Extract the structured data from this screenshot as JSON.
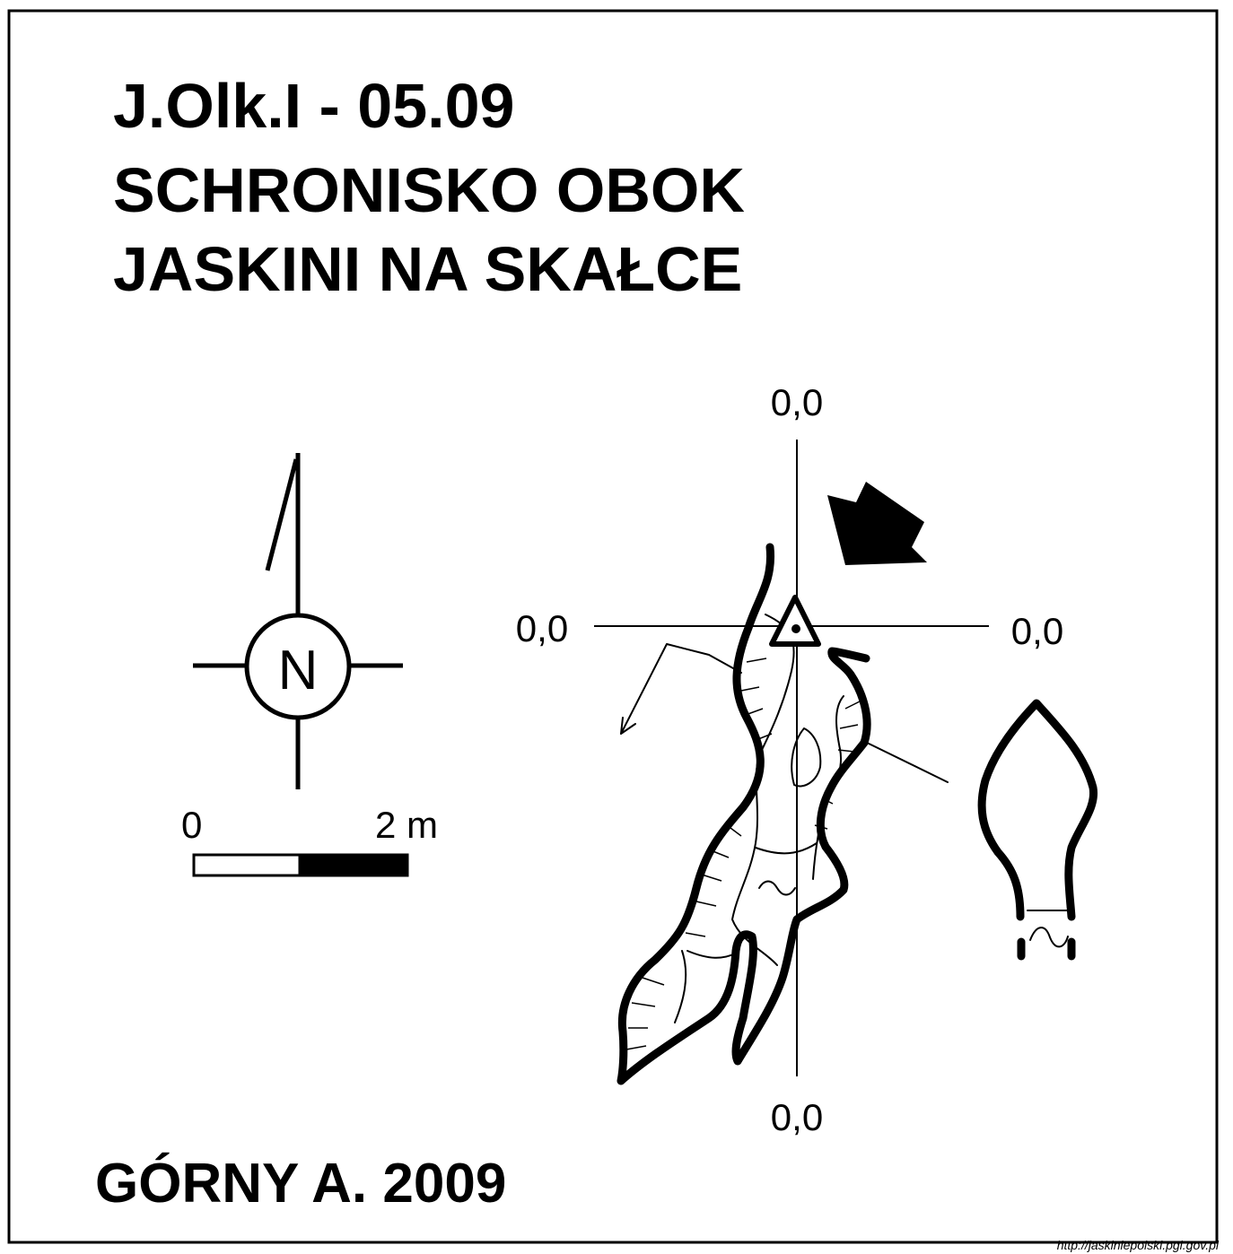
{
  "title": {
    "line1": "J.Olk.I - 05.09",
    "line2": "SCHRONISKO OBOK",
    "line3": "JASKINI NA SKAŁCE"
  },
  "compass": {
    "letter": "N"
  },
  "scale_bar": {
    "start_label": "0",
    "end_label": "2 m"
  },
  "datum": {
    "top": "0,0",
    "left": "0,0",
    "right": "0,0",
    "bottom": "0,0"
  },
  "author": "GÓRNY A.  2009",
  "source": "http://jaskiniepolski.pgi.gov.pl",
  "icons": [
    "compass-north-arrow",
    "entrance-triangle-icon",
    "entrance-arrow-icon",
    "section-arrow-icon"
  ]
}
